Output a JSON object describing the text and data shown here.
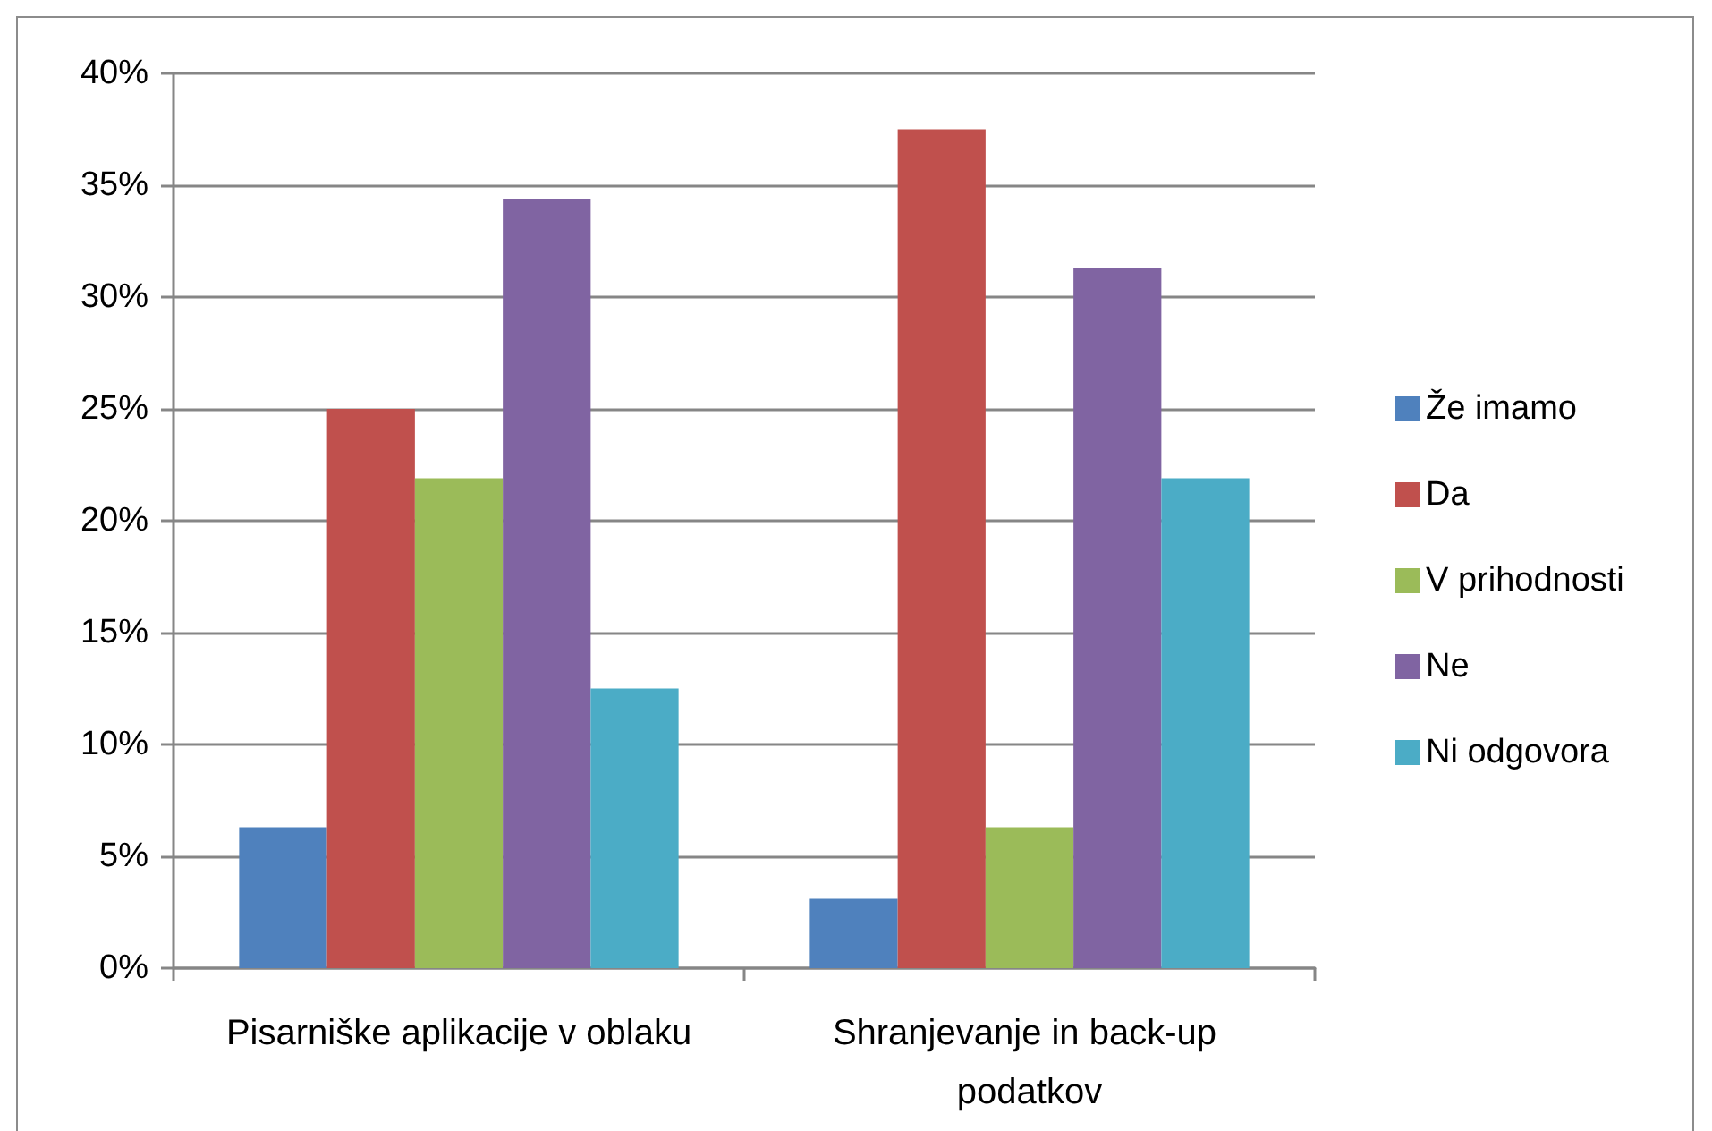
{
  "chart_data": {
    "type": "bar",
    "categories": [
      "Pisarniške aplikacije v oblaku",
      "Shranjevanje in back-up podatkov"
    ],
    "series": [
      {
        "name": "Že imamo",
        "color": "#4f81bd",
        "values": [
          6.3,
          3.1
        ]
      },
      {
        "name": "Da",
        "color": "#c0504d",
        "values": [
          25,
          37.5
        ]
      },
      {
        "name": "V prihodnosti",
        "color": "#9bbb59",
        "values": [
          21.9,
          6.3
        ]
      },
      {
        "name": "Ne",
        "color": "#8064a2",
        "values": [
          34.4,
          31.3
        ]
      },
      {
        "name": "Ni odgovora",
        "color": "#4bacc6",
        "values": [
          12.5,
          21.9
        ]
      }
    ],
    "ylim": [
      0,
      40
    ],
    "yticks": [
      {
        "value": 0,
        "label": "0%"
      },
      {
        "value": 5,
        "label": "5%"
      },
      {
        "value": 10,
        "label": "10%"
      },
      {
        "value": 15,
        "label": "15%"
      },
      {
        "value": 20,
        "label": "20%"
      },
      {
        "value": 25,
        "label": "25%"
      },
      {
        "value": 30,
        "label": "30%"
      },
      {
        "value": 35,
        "label": "35%"
      },
      {
        "value": 40,
        "label": "40%"
      }
    ],
    "grid": "y",
    "legend": "right"
  }
}
